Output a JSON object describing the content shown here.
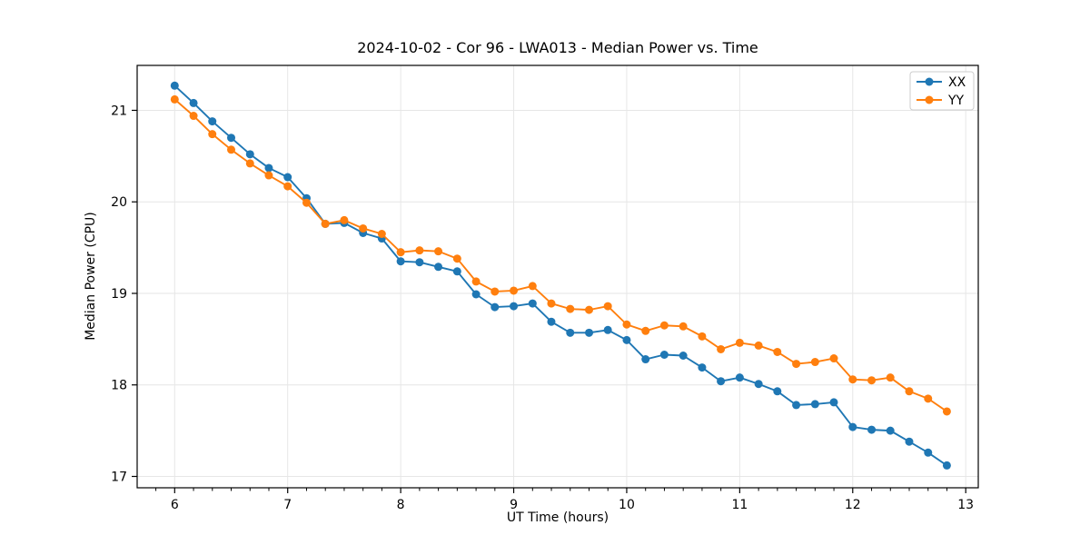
{
  "figure": {
    "background": "#ffffff"
  },
  "chart_data": {
    "type": "line",
    "title": "2024-10-02 - Cor 96 - LWA013 - Median Power vs. Time",
    "xlabel": "UT Time (hours)",
    "ylabel": "Median Power (CPU)",
    "xlim": [
      5.668,
      13.111
    ],
    "ylim": [
      16.876,
      21.491
    ],
    "xticks": [
      6,
      7,
      8,
      9,
      10,
      11,
      12,
      13
    ],
    "yticks": [
      17,
      18,
      19,
      20,
      21
    ],
    "x_minor_tick_step": 0.16667,
    "grid": true,
    "grid_color": "#e6e6e6",
    "spine_color": "#000000",
    "legend": {
      "position": "upper-right",
      "entries": [
        "XX",
        "YY"
      ]
    },
    "x": [
      6.0,
      6.167,
      6.333,
      6.5,
      6.667,
      6.833,
      7.0,
      7.167,
      7.333,
      7.5,
      7.667,
      7.833,
      8.0,
      8.167,
      8.333,
      8.5,
      8.667,
      8.833,
      9.0,
      9.167,
      9.333,
      9.5,
      9.667,
      9.833,
      10.0,
      10.167,
      10.333,
      10.5,
      10.667,
      10.833,
      11.0,
      11.167,
      11.333,
      11.5,
      11.667,
      11.833,
      12.0,
      12.167,
      12.333,
      12.5,
      12.667,
      12.833
    ],
    "series": [
      {
        "name": "XX",
        "color": "#1f77b4",
        "marker": "circle",
        "values": [
          21.27,
          21.08,
          20.88,
          20.7,
          20.52,
          20.37,
          20.27,
          20.04,
          19.76,
          19.77,
          19.66,
          19.6,
          19.35,
          19.34,
          19.29,
          19.24,
          18.99,
          18.85,
          18.86,
          18.89,
          18.69,
          18.57,
          18.57,
          18.6,
          18.49,
          18.28,
          18.33,
          18.32,
          18.19,
          18.04,
          18.08,
          18.01,
          17.93,
          17.78,
          17.79,
          17.81,
          17.54,
          17.51,
          17.5,
          17.38,
          17.26,
          17.12
        ]
      },
      {
        "name": "YY",
        "color": "#ff7f0e",
        "marker": "circle",
        "values": [
          21.12,
          20.94,
          20.74,
          20.57,
          20.42,
          20.29,
          20.17,
          19.99,
          19.76,
          19.8,
          19.71,
          19.65,
          19.45,
          19.47,
          19.46,
          19.38,
          19.13,
          19.02,
          19.03,
          19.08,
          18.89,
          18.83,
          18.82,
          18.86,
          18.66,
          18.59,
          18.65,
          18.64,
          18.53,
          18.39,
          18.46,
          18.43,
          18.36,
          18.23,
          18.25,
          18.29,
          18.06,
          18.05,
          18.08,
          17.93,
          17.85,
          17.71
        ]
      }
    ]
  }
}
